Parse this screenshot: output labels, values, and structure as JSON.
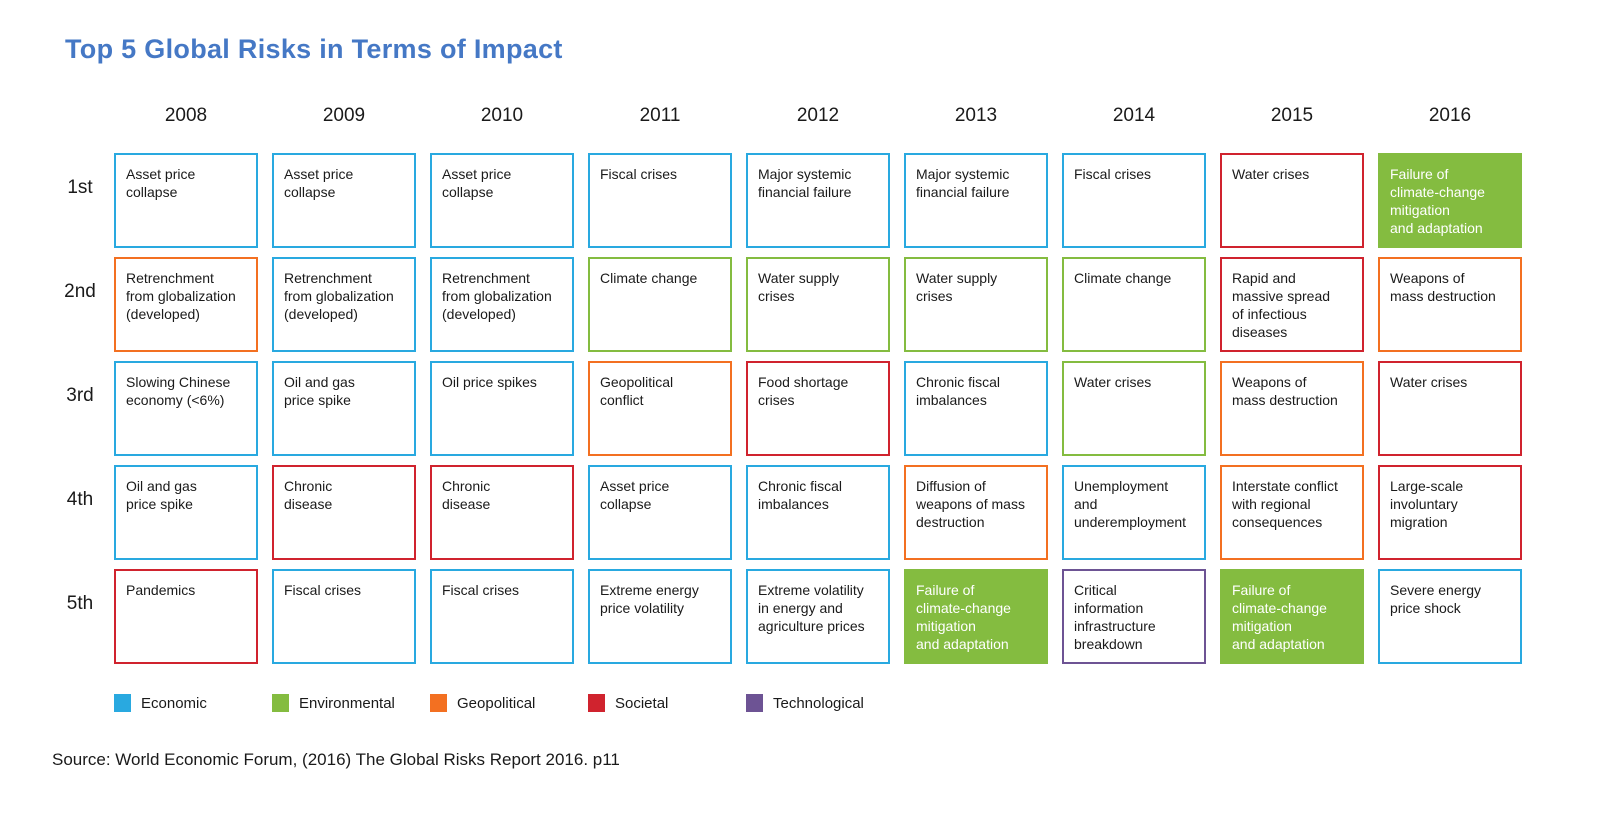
{
  "title": "Top 5 Global Risks in Terms of Impact",
  "source": "Source: World Economic Forum, (2016) The Global Risks Report 2016. p11",
  "colors": {
    "title_blue": "#4578C5",
    "economic": "#29A9E0",
    "environmental": "#84BC40",
    "geopolitical": "#F37021",
    "societal": "#D0232E",
    "technological": "#6D5394",
    "cell_text": "#1a1a1a",
    "filled_text": "#ffffff"
  },
  "chart_data": {
    "type": "table",
    "title": "Top 5 Global Risks in Terms of Impact",
    "columns": [
      "2008",
      "2009",
      "2010",
      "2011",
      "2012",
      "2013",
      "2014",
      "2015",
      "2016"
    ],
    "row_labels": [
      "1st",
      "2nd",
      "3rd",
      "4th",
      "5th"
    ],
    "legend_position": "bottom",
    "legend": [
      {
        "label": "Economic",
        "category": "economic"
      },
      {
        "label": "Environmental",
        "category": "environmental"
      },
      {
        "label": "Geopolitical",
        "category": "geopolitical"
      },
      {
        "label": "Societal",
        "category": "societal"
      },
      {
        "label": "Technological",
        "category": "technological"
      }
    ],
    "rows": [
      [
        {
          "text": "Asset price\ncollapse",
          "category": "economic",
          "filled": false
        },
        {
          "text": "Asset price\ncollapse",
          "category": "economic",
          "filled": false
        },
        {
          "text": "Asset price\ncollapse",
          "category": "economic",
          "filled": false
        },
        {
          "text": "Fiscal crises",
          "category": "economic",
          "filled": false
        },
        {
          "text": "Major systemic\nfinancial failure",
          "category": "economic",
          "filled": false
        },
        {
          "text": "Major systemic\nfinancial failure",
          "category": "economic",
          "filled": false
        },
        {
          "text": "Fiscal crises",
          "category": "economic",
          "filled": false
        },
        {
          "text": "Water crises",
          "category": "societal",
          "filled": false
        },
        {
          "text": "Failure of\nclimate-change\nmitigation\nand adaptation",
          "category": "environmental",
          "filled": true
        }
      ],
      [
        {
          "text": "Retrenchment\nfrom globalization\n(developed)",
          "category": "geopolitical",
          "filled": false
        },
        {
          "text": "Retrenchment\nfrom globalization\n(developed)",
          "category": "economic",
          "filled": false
        },
        {
          "text": "Retrenchment\nfrom globalization\n(developed)",
          "category": "economic",
          "filled": false
        },
        {
          "text": "Climate change",
          "category": "environmental",
          "filled": false
        },
        {
          "text": "Water supply\ncrises",
          "category": "environmental",
          "filled": false
        },
        {
          "text": "Water supply\ncrises",
          "category": "environmental",
          "filled": false
        },
        {
          "text": "Climate change",
          "category": "environmental",
          "filled": false
        },
        {
          "text": "Rapid and\nmassive spread\nof infectious\ndiseases",
          "category": "societal",
          "filled": false
        },
        {
          "text": "Weapons of\nmass destruction",
          "category": "geopolitical",
          "filled": false
        }
      ],
      [
        {
          "text": "Slowing Chinese\neconomy (<6%)",
          "category": "economic",
          "filled": false
        },
        {
          "text": "Oil and gas\nprice spike",
          "category": "economic",
          "filled": false
        },
        {
          "text": "Oil price spikes",
          "category": "economic",
          "filled": false
        },
        {
          "text": "Geopolitical\nconflict",
          "category": "geopolitical",
          "filled": false
        },
        {
          "text": "Food shortage\ncrises",
          "category": "societal",
          "filled": false
        },
        {
          "text": "Chronic fiscal\nimbalances",
          "category": "economic",
          "filled": false
        },
        {
          "text": "Water crises",
          "category": "environmental",
          "filled": false
        },
        {
          "text": "Weapons of\nmass destruction",
          "category": "geopolitical",
          "filled": false
        },
        {
          "text": "Water crises",
          "category": "societal",
          "filled": false
        }
      ],
      [
        {
          "text": "Oil and gas\nprice spike",
          "category": "economic",
          "filled": false
        },
        {
          "text": "Chronic\ndisease",
          "category": "societal",
          "filled": false
        },
        {
          "text": "Chronic\ndisease",
          "category": "societal",
          "filled": false
        },
        {
          "text": "Asset price\ncollapse",
          "category": "economic",
          "filled": false
        },
        {
          "text": "Chronic fiscal\nimbalances",
          "category": "economic",
          "filled": false
        },
        {
          "text": "Diffusion of\nweapons of mass\ndestruction",
          "category": "geopolitical",
          "filled": false
        },
        {
          "text": "Unemployment\nand\nunderemployment",
          "category": "economic",
          "filled": false
        },
        {
          "text": "Interstate conflict\nwith regional\nconsequences",
          "category": "geopolitical",
          "filled": false
        },
        {
          "text": "Large-scale\ninvoluntary\nmigration",
          "category": "societal",
          "filled": false
        }
      ],
      [
        {
          "text": "Pandemics",
          "category": "societal",
          "filled": false
        },
        {
          "text": "Fiscal crises",
          "category": "economic",
          "filled": false
        },
        {
          "text": "Fiscal crises",
          "category": "economic",
          "filled": false
        },
        {
          "text": "Extreme energy\nprice volatility",
          "category": "economic",
          "filled": false
        },
        {
          "text": "Extreme volatility\nin energy and\nagriculture prices",
          "category": "economic",
          "filled": false
        },
        {
          "text": "Failure of\nclimate-change\nmitigation\nand adaptation",
          "category": "environmental",
          "filled": true
        },
        {
          "text": "Critical\ninformation\ninfrastructure\nbreakdown",
          "category": "technological",
          "filled": false
        },
        {
          "text": "Failure of\nclimate-change\nmitigation\nand adaptation",
          "category": "environmental",
          "filled": true
        },
        {
          "text": "Severe energy\nprice shock",
          "category": "economic",
          "filled": false
        }
      ]
    ]
  }
}
